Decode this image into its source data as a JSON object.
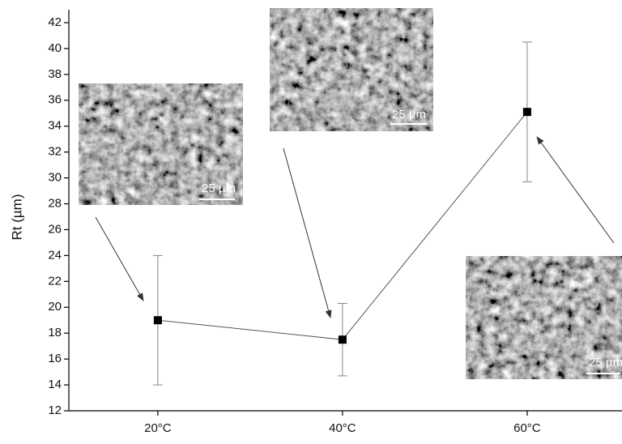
{
  "chart_data": {
    "type": "errorbar-line",
    "y_label": "Rt (µm)",
    "categories": [
      "20°C",
      "40°C",
      "60°C"
    ],
    "series": [
      {
        "name": "Rt",
        "color": "#000000",
        "values": [
          19.0,
          17.5,
          35.1
        ],
        "errors": [
          5.0,
          2.8,
          5.4
        ]
      }
    ],
    "ylim": [
      12,
      43
    ],
    "yticks": [
      12,
      14,
      16,
      18,
      20,
      22,
      24,
      26,
      28,
      30,
      32,
      34,
      36,
      38,
      40,
      42
    ],
    "annotations": [
      "25 µm",
      "25 µm",
      "25 µm"
    ]
  }
}
